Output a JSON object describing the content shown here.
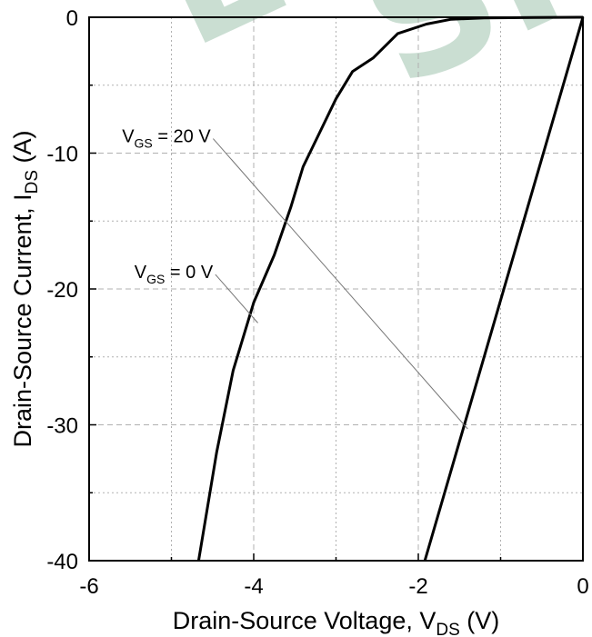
{
  "chart_data": {
    "type": "line",
    "title": "",
    "xlabel": "Drain-Source Voltage, V",
    "xlabel_sub": "DS",
    "xlabel_unit": " (V)",
    "ylabel": "Drain-Source Current, I",
    "ylabel_sub": "DS",
    "ylabel_unit": " (A)",
    "xlim": [
      -6,
      0
    ],
    "ylim": [
      -40,
      0
    ],
    "xticks": [
      -6,
      -4,
      -2,
      0
    ],
    "yticks": [
      0,
      -10,
      -20,
      -30,
      -40
    ],
    "x_minor_step": 1,
    "y_minor_step": 5,
    "grid": true,
    "series": [
      {
        "name": "VGS = 0 V",
        "x": [
          -4.67,
          -4.45,
          -4.25,
          -4.0,
          -3.75,
          -3.55,
          -3.4,
          -3.2,
          -3.0,
          -2.8,
          -2.55,
          -2.25,
          -1.9,
          -1.6,
          -1.2,
          -0.6,
          0
        ],
        "y": [
          -40,
          -32,
          -26,
          -21,
          -17.5,
          -14,
          -11,
          -8.5,
          -6,
          -4,
          -3,
          -1.2,
          -0.5,
          -0.15,
          -0.05,
          -0.02,
          0
        ]
      },
      {
        "name": "VGS = 20 V",
        "x": [
          -1.92,
          0
        ],
        "y": [
          -40,
          0
        ]
      }
    ],
    "annotations": [
      {
        "text": "V",
        "sub": "GS",
        "rest": " = 20 V",
        "label_x": -5.6,
        "label_y": -9.2,
        "target_x": -1.4,
        "target_y": -30.3
      },
      {
        "text": "V",
        "sub": "GS",
        "rest": " = 0 V",
        "label_x": -5.45,
        "label_y": -19.2,
        "target_x": -3.95,
        "target_y": -22.5
      }
    ],
    "colors": {
      "line": "#000000",
      "grid": "#b0b0b0",
      "leader": "#777777",
      "watermark": "#b9d3c4"
    }
  }
}
